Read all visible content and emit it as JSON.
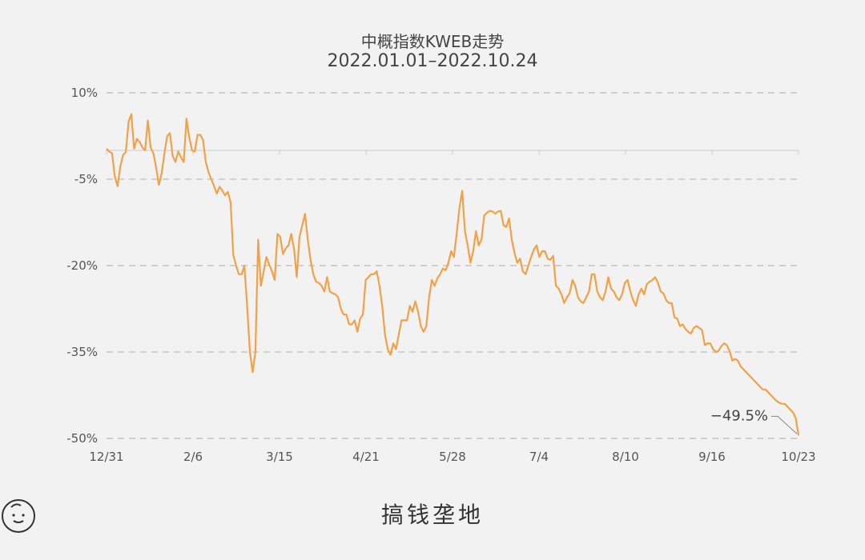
{
  "title": "中概指数KWEB走势",
  "subtitle": "2022.01.01–2022.10.24",
  "brand": {
    "name": "搞钱垄地",
    "logo_icon": "smiling-face-icon"
  },
  "colors": {
    "line": "#f4a046",
    "grid": "#bdbdbd",
    "zero_line": "#cccccc"
  },
  "chart_data": {
    "type": "line",
    "title": "中概指数KWEB走势",
    "subtitle": "2022.01.01–2022.10.24",
    "xlabel": "",
    "ylabel": "",
    "ylim": [
      -50,
      10
    ],
    "y_ticks": [
      "10%",
      "-5%",
      "-20%",
      "-35%",
      "-50%"
    ],
    "x_ticks": [
      "12/31",
      "2/6",
      "3/15",
      "4/21",
      "5/28",
      "7/4",
      "8/10",
      "9/16",
      "10/23"
    ],
    "grid": "horizontal dashed",
    "annotation": {
      "text": "−49.5%",
      "value": -49.5
    },
    "series": [
      {
        "values": [
          0.3,
          -0.2,
          -0.5,
          -4.5,
          -6.2,
          -2.8,
          -0.8,
          -0.3,
          5,
          6.3,
          0.3,
          2,
          1.5,
          0.5,
          0,
          5.2,
          0.5,
          -0.5,
          -3,
          -6,
          -4,
          -0.5,
          2.5,
          3,
          -1,
          -2,
          -0.2,
          -1.2,
          -2,
          5.5,
          2.3,
          0,
          -0.2,
          2.7,
          2.7,
          1.8,
          -2,
          -3.8,
          -5,
          -6.2,
          -7.5,
          -6.3,
          -7,
          -7.8,
          -7.2,
          -9,
          -18.2,
          -20,
          -21.5,
          -21.5,
          -20,
          -27,
          -35,
          -38.5,
          -35,
          -15.5,
          -23.5,
          -21,
          -18.5,
          -19.8,
          -21,
          -22.5,
          -14.5,
          -15,
          -18,
          -17,
          -16.5,
          -14.5,
          -17,
          -22,
          -15,
          -13,
          -11,
          -15.5,
          -19,
          -21.5,
          -22.8,
          -23,
          -23.5,
          -24.5,
          -22,
          -24.5,
          -24.8,
          -25,
          -25.5,
          -27.5,
          -28.5,
          -28.5,
          -30.2,
          -30.2,
          -29.5,
          -31.5,
          -29.2,
          -28.5,
          -22.5,
          -22,
          -21.5,
          -21.5,
          -21,
          -23.5,
          -27,
          -32,
          -34.5,
          -35.5,
          -33.5,
          -34.5,
          -32,
          -29.5,
          -29.5,
          -29.5,
          -27,
          -28,
          -26.2,
          -28,
          -30.5,
          -31.5,
          -30.5,
          -25.5,
          -22.5,
          -23.5,
          -22.2,
          -21.5,
          -20.5,
          -20.8,
          -19.5,
          -17.5,
          -18.5,
          -14.5,
          -10,
          -7,
          -14,
          -16.5,
          -19.5,
          -17.5,
          -14,
          -16.5,
          -15.5,
          -11.3,
          -10.8,
          -10.5,
          -10.6,
          -11,
          -10.6,
          -10.5,
          -13,
          -13.3,
          -11.8,
          -15.5,
          -17.8,
          -19.5,
          -18.8,
          -21,
          -21.5,
          -20,
          -18.5,
          -17.2,
          -16.5,
          -18.5,
          -17.5,
          -17.5,
          -18.8,
          -19,
          -18.3,
          -23.5,
          -24,
          -25,
          -26.5,
          -25.5,
          -24.8,
          -22.5,
          -23.5,
          -25.5,
          -26.2,
          -26.5,
          -25.5,
          -24.5,
          -21.5,
          -21.5,
          -24.5,
          -25.5,
          -26,
          -24.5,
          -22,
          -24,
          -24.5,
          -25.5,
          -26,
          -25,
          -23,
          -22.5,
          -24.5,
          -26,
          -27,
          -25,
          -24,
          -25,
          -23.2,
          -22.8,
          -22.5,
          -22,
          -23,
          -24.5,
          -24.8,
          -26,
          -26.5,
          -26.5,
          -29,
          -29.2,
          -30.5,
          -30.2,
          -31,
          -31.5,
          -31.8,
          -30.8,
          -30.5,
          -30.8,
          -31.2,
          -33.8,
          -33.5,
          -33.5,
          -34.5,
          -35,
          -34.8,
          -34,
          -33.5,
          -33.8,
          -34.8,
          -36.5,
          -36.2,
          -36.5,
          -37.5,
          -38,
          -38.5,
          -39,
          -39.5,
          -40,
          -40.5,
          -41,
          -41.5,
          -41.5,
          -42,
          -42.5,
          -43,
          -43.5,
          -43.8,
          -44,
          -44,
          -44.5,
          -45,
          -45.5,
          -46.5,
          -49.5
        ]
      }
    ]
  }
}
